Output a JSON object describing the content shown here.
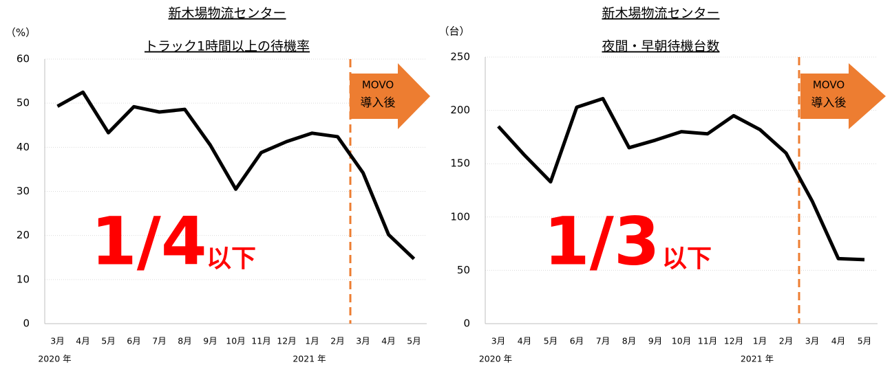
{
  "chart_data": [
    {
      "type": "line",
      "title": "新木場物流センター",
      "subtitle": "トラック1時間以上の待機率",
      "y_label": "（%）",
      "categories": [
        "3月",
        "4月",
        "5月",
        "6月",
        "7月",
        "8月",
        "9月",
        "10月",
        "11月",
        "12月",
        "1月",
        "2月",
        "3月",
        "4月",
        "5月"
      ],
      "year_labels": [
        "2020 年",
        "2021 年"
      ],
      "series": [
        {
          "name": "待機率",
          "color": "#000000",
          "values": [
            49.3,
            52.5,
            43.3,
            49.2,
            48,
            48.6,
            40.5,
            30.5,
            38.8,
            41.3,
            43.2,
            42.4,
            34.2,
            20.2,
            14.7
          ]
        }
      ],
      "ylim": [
        0,
        60
      ],
      "yticks": [
        0,
        10,
        20,
        30,
        40,
        50,
        60
      ],
      "grid": true,
      "annotations": {
        "ratio": "1/4",
        "suffix": "以下",
        "arrow": [
          "MOVO",
          "導入後"
        ]
      }
    },
    {
      "type": "line",
      "title": "新木場物流センター",
      "subtitle": "夜間・早朝待機台数",
      "y_label": "（台）",
      "categories": [
        "3月",
        "4月",
        "5月",
        "6月",
        "7月",
        "8月",
        "9月",
        "10月",
        "11月",
        "12月",
        "1月",
        "2月",
        "3月",
        "4月",
        "5月"
      ],
      "year_labels": [
        "2020 年",
        "2021 年"
      ],
      "series": [
        {
          "name": "待機台数",
          "color": "#000000",
          "values": [
            185,
            158,
            133,
            203,
            211,
            165,
            172,
            180,
            178,
            195,
            182,
            160,
            115,
            61,
            60
          ]
        }
      ],
      "ylim": [
        0,
        250
      ],
      "yticks": [
        0,
        50,
        100,
        150,
        200,
        250
      ],
      "grid": true,
      "annotations": {
        "ratio": "1/3",
        "suffix": "以下",
        "arrow": [
          "MOVO",
          "導入後"
        ]
      }
    }
  ]
}
